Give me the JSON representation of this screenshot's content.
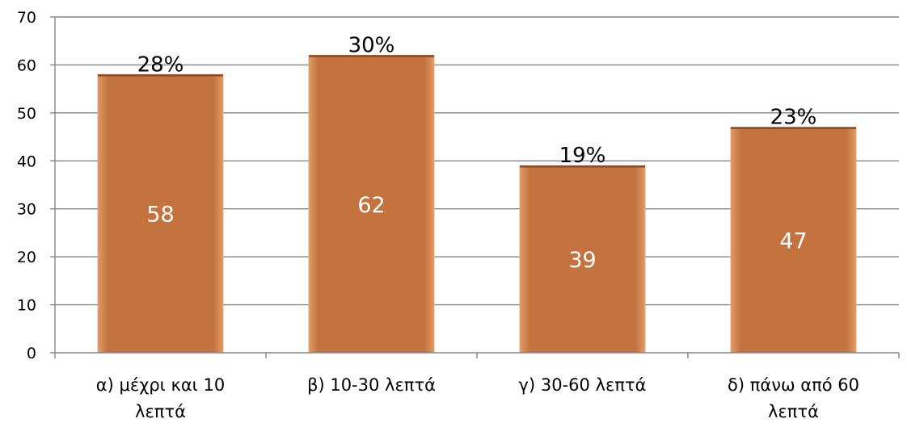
{
  "chart_data": {
    "type": "bar",
    "title": "",
    "xlabel": "",
    "ylabel": "",
    "categories": [
      [
        "α) μέχρι και 10",
        "λεπτά"
      ],
      [
        "β) 10-30 λεπτά"
      ],
      [
        "γ) 30-60 λεπτά"
      ],
      [
        "δ) πάνω από 60",
        "λεπτά"
      ]
    ],
    "values": [
      58,
      62,
      39,
      47
    ],
    "percent_labels": [
      "28%",
      "30%",
      "19%",
      "23%"
    ],
    "ylim": [
      0,
      70
    ],
    "yticks": [
      0,
      10,
      20,
      30,
      40,
      50,
      60,
      70
    ],
    "grid": true,
    "bar_color": "#c0703f",
    "bar_edge_color": "#e9a978",
    "gridline_color": "#868686"
  }
}
